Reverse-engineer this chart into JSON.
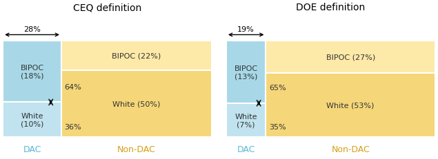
{
  "charts": [
    {
      "title": "CEQ definition",
      "dac_pct": 0.28,
      "dac_bipoc_pct": 0.64,
      "dac_white_pct": 0.36,
      "nondac_bipoc_pct": 0.306,
      "nondac_white_pct": 0.694,
      "dac_bipoc_label": "BIPOC\n(18%)",
      "dac_white_label": "White\n(10%)",
      "nondac_bipoc_label": "BIPOC (22%)",
      "nondac_white_label": "White (50%)",
      "dac_bipoc_bar_pct": "64%",
      "dac_white_bar_pct": "36%",
      "dac_width_label": "28%"
    },
    {
      "title": "DOE definition",
      "dac_pct": 0.19,
      "dac_bipoc_pct": 0.65,
      "dac_white_pct": 0.35,
      "nondac_bipoc_pct": 0.337,
      "nondac_white_pct": 0.663,
      "dac_bipoc_label": "BIPOC\n(13%)",
      "dac_white_label": "White\n(7%)",
      "nondac_bipoc_label": "BIPOC (27%)",
      "nondac_white_label": "White (53%)",
      "dac_bipoc_bar_pct": "65%",
      "dac_white_bar_pct": "35%",
      "dac_width_label": "19%"
    }
  ],
  "color_dac_bipoc": "#A8D8E8",
  "color_dac_white": "#C0E3EF",
  "color_nondac_bipoc": "#FDE9A8",
  "color_nondac_white": "#F5D678",
  "color_dac_text": "#5BB8D4",
  "color_nondac_text": "#D4A017",
  "label_fontsize": 8,
  "title_fontsize": 10,
  "legend_fontsize": 9
}
